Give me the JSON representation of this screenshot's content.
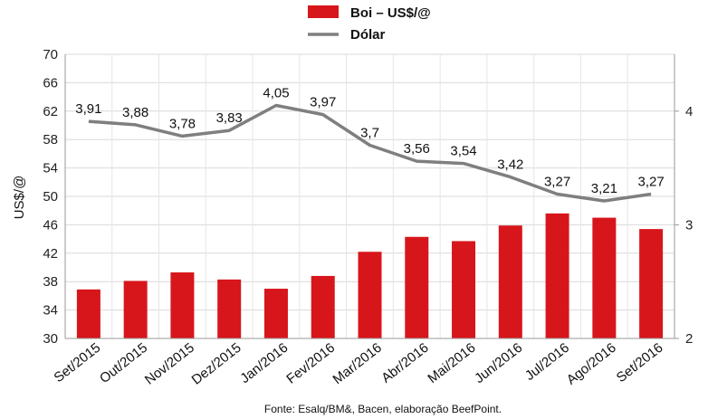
{
  "chart_data": {
    "type": "bar+line",
    "categories": [
      "Set/2015",
      "Out/2015",
      "Nov/2015",
      "Dez/2015",
      "Jan/2016",
      "Fev/2016",
      "Mar/2016",
      "Abr/2016",
      "Mai/2016",
      "Jun/2016",
      "Jul/2016",
      "Ago/2016",
      "Set/2016"
    ],
    "series": [
      {
        "name": "Boi – US$/@",
        "type": "bar",
        "axis": "left",
        "color": "#d7161b",
        "values": [
          36.9,
          38.1,
          39.3,
          38.3,
          37.0,
          38.8,
          42.2,
          44.3,
          43.7,
          45.9,
          47.6,
          47.0,
          45.4
        ]
      },
      {
        "name": "Dólar",
        "type": "line",
        "axis": "right",
        "color": "#7f7f7f",
        "values": [
          3.91,
          3.88,
          3.78,
          3.83,
          4.05,
          3.97,
          3.7,
          3.56,
          3.54,
          3.42,
          3.27,
          3.21,
          3.27
        ],
        "labels": [
          "3,91",
          "3,88",
          "3,78",
          "3,83",
          "4,05",
          "3,97",
          "3,7",
          "3,56",
          "3,54",
          "3,42",
          "3,27",
          "3,21",
          "3,27"
        ]
      }
    ],
    "ylabel": "US$/@",
    "ylim": [
      30,
      70
    ],
    "yticks": [
      "30",
      "34",
      "38",
      "42",
      "46",
      "50",
      "54",
      "58",
      "62",
      "66",
      "70"
    ],
    "y2lim": [
      2,
      4.5
    ],
    "y2ticks": [
      "2",
      "3",
      "4"
    ],
    "grid": true,
    "legend_position": "top",
    "source": "Fonte: Esalq/BM&, Bacen, elaboração BeefPoint."
  }
}
